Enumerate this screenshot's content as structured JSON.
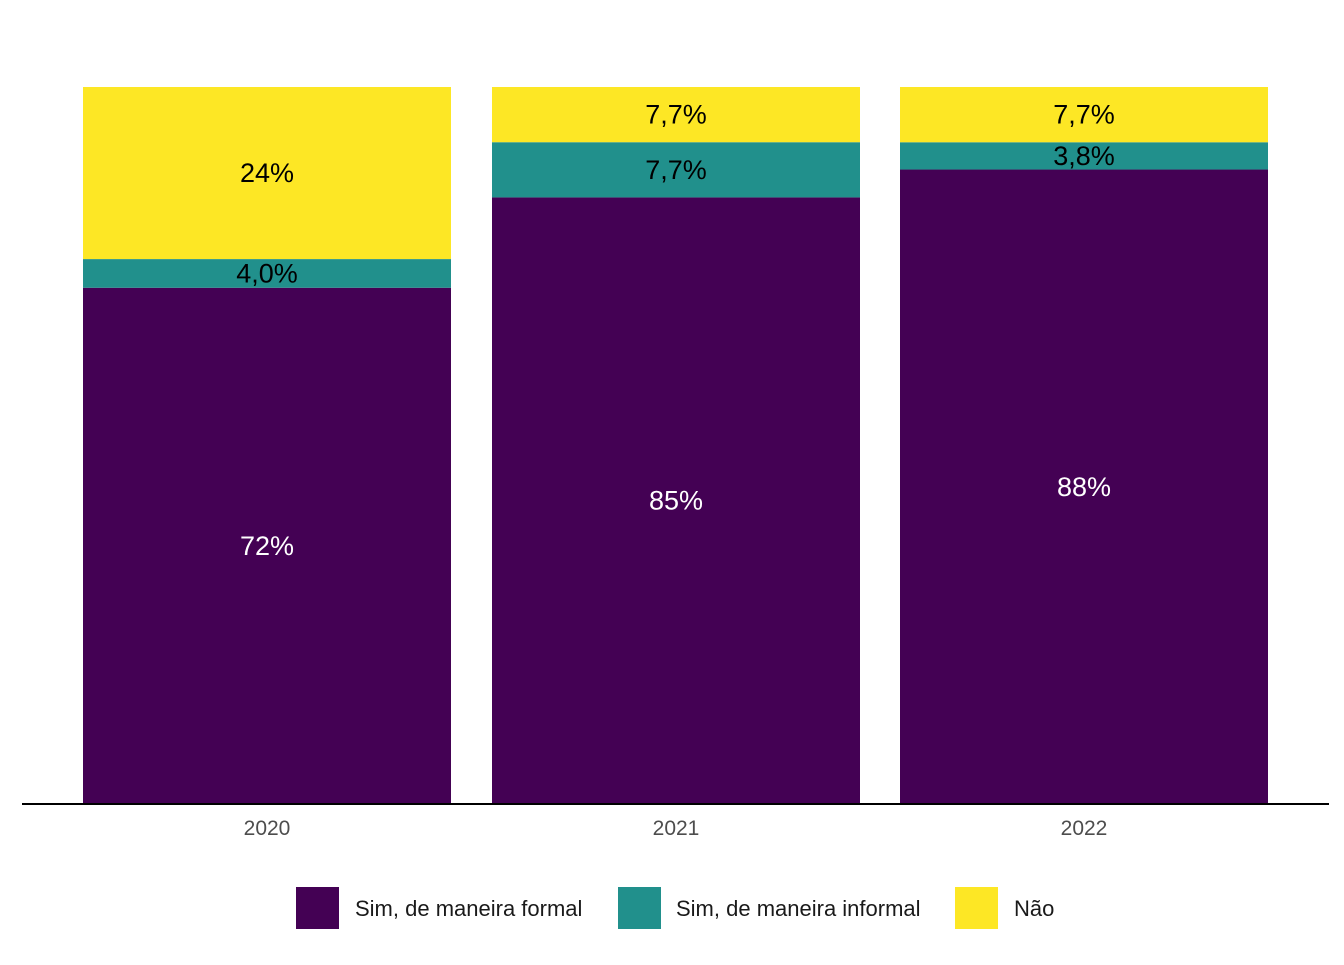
{
  "chart_data": {
    "type": "bar",
    "stacked": true,
    "normalized": true,
    "categories": [
      "2020",
      "2021",
      "2022"
    ],
    "series": [
      {
        "name": "Sim, de maneira formal",
        "color": "#440154",
        "label_color": "#ffffff",
        "values": [
          72,
          84.6,
          88.4
        ],
        "labels": [
          "72%",
          "85%",
          "88%"
        ]
      },
      {
        "name": "Sim, de maneira informal",
        "color": "#21908C",
        "label_color": "#000000",
        "values": [
          4.0,
          7.7,
          3.8
        ],
        "labels": [
          "4,0%",
          "7,7%",
          "3,8%"
        ]
      },
      {
        "name": "Não",
        "color": "#FDE725",
        "label_color": "#000000",
        "values": [
          24,
          7.7,
          7.7
        ],
        "labels": [
          "24%",
          "7,7%",
          "7,7%"
        ]
      }
    ],
    "title": "",
    "xlabel": "",
    "ylabel": "",
    "ylim": [
      0,
      100
    ],
    "grid": false,
    "legend_position": "bottom"
  }
}
